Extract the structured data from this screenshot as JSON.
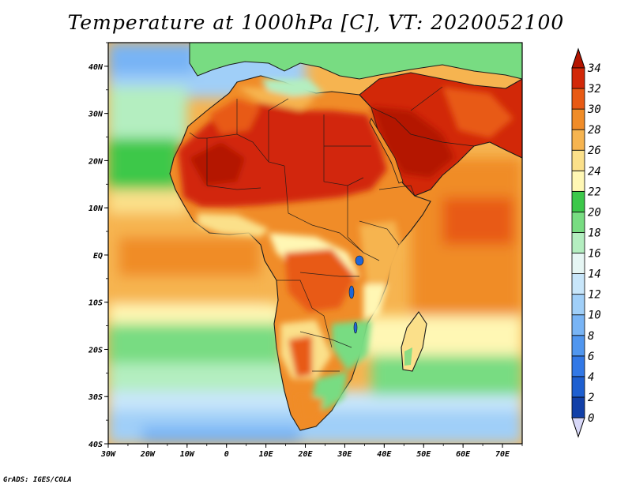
{
  "title": "Temperature at 1000hPa [C], VT: 2020052100",
  "credit": "GrADS: IGES/COLA",
  "map": {
    "lon_range": [
      -30,
      75
    ],
    "lat_range": [
      -40,
      45
    ],
    "x_ticks": [
      "30W",
      "20W",
      "10W",
      "0",
      "10E",
      "20E",
      "30E",
      "40E",
      "50E",
      "60E",
      "70E"
    ],
    "y_ticks": [
      "40S",
      "30S",
      "20S",
      "10S",
      "EQ",
      "10N",
      "20N",
      "30N",
      "40N"
    ]
  },
  "colorbar": {
    "labels": [
      "0",
      "2",
      "4",
      "6",
      "8",
      "10",
      "12",
      "14",
      "16",
      "18",
      "20",
      "22",
      "24",
      "26",
      "28",
      "30",
      "32",
      "34"
    ],
    "colors": [
      "#0a1e6e",
      "#1240a8",
      "#1e5fd0",
      "#3278e6",
      "#5096ef",
      "#78b4f5",
      "#a0cff8",
      "#c8e6fa",
      "#e6f6f4",
      "#b4eec0",
      "#78dc82",
      "#3cc84a",
      "#fff7b4",
      "#fbe08a",
      "#f6b450",
      "#f08c28",
      "#e85a14",
      "#d22808",
      "#b41400"
    ]
  }
}
